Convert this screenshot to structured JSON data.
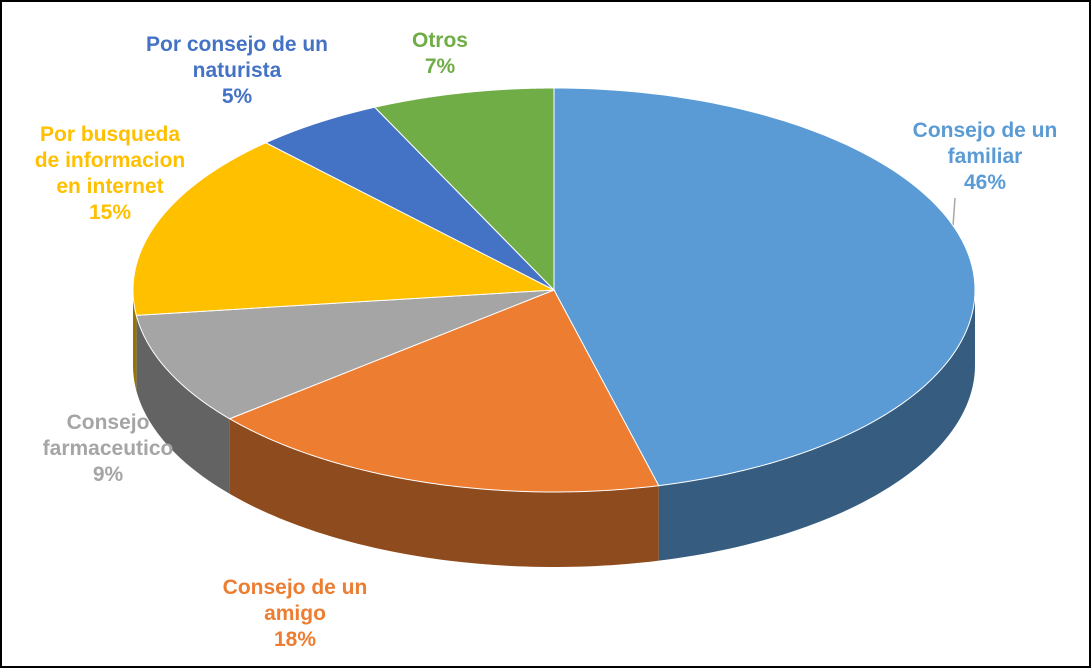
{
  "chart_data": {
    "type": "pie3d",
    "categories": [
      "Consejo de un familiar",
      "Consejo de un amigo",
      "Consejo farmaceutico",
      "Por busqueda de informacion en internet",
      "Por consejo de un naturista",
      "Otros"
    ],
    "values": [
      46,
      18,
      9,
      15,
      5,
      7
    ],
    "value_labels": [
      "46%",
      "18%",
      "9%",
      "15%",
      "5%",
      "7%"
    ],
    "colors": [
      "#5b9bd5",
      "#ed7d31",
      "#a5a5a5",
      "#ffc000",
      "#4472c4",
      "#70ad47"
    ]
  }
}
